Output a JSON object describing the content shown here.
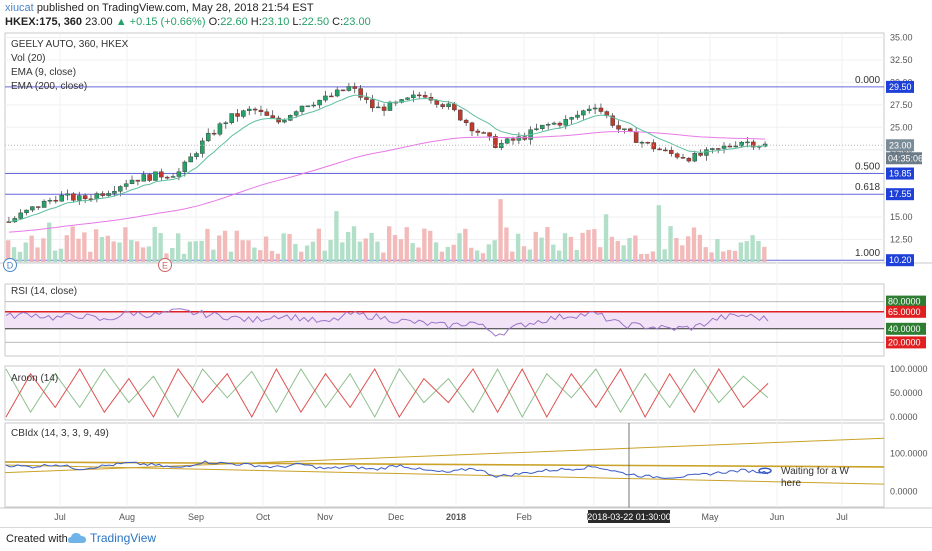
{
  "header": {
    "author": "xiucat",
    "published": "published on TradingView.com, May 28, 2018 21:54 EST",
    "symbol": "HKEX:175, 360",
    "last": "23.00",
    "change": "+0.15 (+0.66%)",
    "open_label": "O:",
    "open": "22.60",
    "high_label": "H:",
    "high": "23.10",
    "low_label": "L:",
    "low": "22.50",
    "close_label": "C:",
    "close": "23.00"
  },
  "panes": {
    "price": {
      "lines": [
        "GEELY AUTO, 360, HKEX",
        "Vol (20)",
        "EMA (9, close)",
        "EMA (200, close)"
      ]
    },
    "rsi": {
      "label": "RSI (14, close)"
    },
    "aroon": {
      "label": "Aroon (14)"
    },
    "cbidx": {
      "label": "CBIdx (14, 3, 3, 9, 49)",
      "annotation_lines": [
        "Waiting for a W",
        "here"
      ]
    }
  },
  "markers": {
    "d": "D",
    "e": "E"
  },
  "footer": {
    "created_with": "Created with",
    "brand": "TradingView"
  },
  "colors": {
    "up": "#26a269",
    "down": "#c0392b",
    "ema9": "#5fbfa0",
    "ema200": "#e879e8",
    "fib": "#6a6ae0",
    "rsi": "#9a74c8",
    "rsi_fill": "#f3e3f7",
    "aroon_up": "#8fbf8f",
    "aroon_down": "#e05050",
    "cbidx": "#3a5bc7",
    "trend": "#c9a227",
    "tag_blue": "#1e40d8",
    "tag_green": "#2e7d32",
    "tag_red": "#e02020",
    "tag_gray": "#7b8c99"
  },
  "chart_data": [
    {
      "type": "candlestick",
      "title": "GEELY AUTO, 360, HKEX",
      "x_ticks": [
        "Jul",
        "Aug",
        "Sep",
        "Oct",
        "Nov",
        "Dec",
        "2018",
        "Feb",
        "Mar",
        "Apr",
        "May",
        "Jun",
        "Jul"
      ],
      "y_ticks": [
        "35.00",
        "32.50",
        "30.00",
        "27.50",
        "25.00",
        "22.50",
        "20.00",
        "17.50",
        "15.00",
        "12.50",
        "10.00"
      ],
      "ylim": [
        10,
        35.5
      ],
      "approx_closes": [
        14.5,
        16.0,
        17.3,
        17.0,
        17.9,
        19.2,
        19.6,
        20.0,
        23.5,
        26.0,
        27.0,
        25.5,
        27.5,
        28.2,
        29.5,
        27.0,
        27.6,
        28.8,
        27.3,
        25.0,
        23.0,
        23.8,
        25.2,
        25.8,
        27.6,
        24.8,
        23.3,
        22.1,
        21.6,
        22.4,
        23.5,
        23.0
      ],
      "fib_levels": [
        {
          "label": "0.000",
          "price": "29.50"
        },
        {
          "label": "0.500",
          "price": "19.85"
        },
        {
          "label": "0.618",
          "price": "17.55"
        },
        {
          "label": "1.000",
          "price": "10.20"
        }
      ],
      "current_price_tag": "23.00",
      "countdown": "04:35:06",
      "series": [
        {
          "name": "Vol (20)"
        },
        {
          "name": "EMA (9, close)"
        },
        {
          "name": "EMA (200, close)"
        }
      ]
    },
    {
      "type": "line",
      "title": "RSI (14, close)",
      "y_ticks": [
        "80.0000",
        "65.0000",
        "40.0000",
        "20.0000"
      ],
      "ylim": [
        0,
        100
      ],
      "levels": [
        80,
        65,
        40,
        20
      ],
      "approx_values": [
        58,
        62,
        56,
        60,
        52,
        64,
        60,
        66,
        62,
        58,
        52,
        60,
        56,
        48,
        62,
        58,
        52,
        48,
        44,
        50,
        32,
        46,
        54,
        60,
        62,
        46,
        44,
        40,
        42,
        56,
        60,
        54
      ]
    },
    {
      "type": "line",
      "title": "Aroon (14)",
      "y_ticks": [
        "100.0000",
        "50.0000",
        "0.0000"
      ],
      "ylim": [
        0,
        100
      ],
      "series": [
        {
          "approx_values": [
            100,
            10,
            90,
            20,
            100,
            30,
            85,
            0,
            100,
            40,
            95,
            10,
            100,
            20,
            90,
            0,
            100,
            30,
            80,
            10,
            100,
            0,
            90,
            40,
            100,
            10,
            90,
            20,
            100,
            30,
            85,
            40
          ]
        },
        {
          "approx_values": [
            0,
            90,
            20,
            100,
            10,
            80,
            0,
            100,
            30,
            90,
            0,
            100,
            10,
            90,
            20,
            100,
            0,
            80,
            30,
            100,
            10,
            100,
            0,
            90,
            20,
            100,
            0,
            90,
            10,
            100,
            20,
            70
          ]
        }
      ]
    },
    {
      "type": "line",
      "title": "CBIdx (14, 3, 3, 9, 49)",
      "y_ticks": [
        "100.0000",
        "0.0000"
      ],
      "ylim": [
        -40,
        180
      ],
      "approx_values": [
        70,
        65,
        72,
        60,
        68,
        75,
        70,
        62,
        78,
        74,
        70,
        64,
        72,
        60,
        66,
        58,
        70,
        56,
        50,
        62,
        40,
        48,
        56,
        60,
        66,
        50,
        40,
        38,
        42,
        50,
        56,
        50
      ],
      "crosshair_date": "2018-03-22 01:30:00"
    }
  ]
}
